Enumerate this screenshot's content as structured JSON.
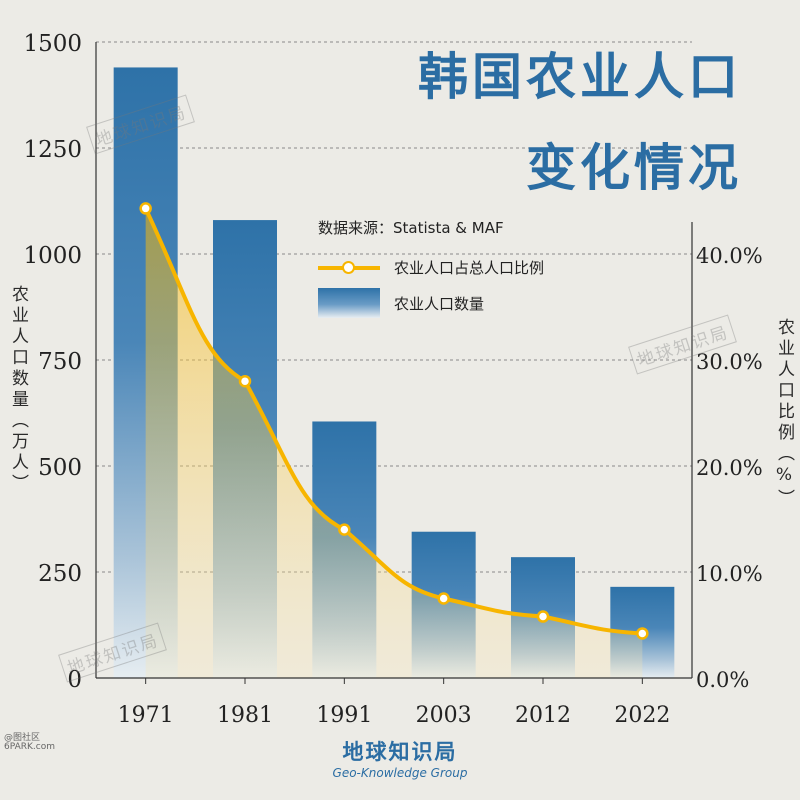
{
  "title_line1": "韩国农业人口",
  "title_line2": "变化情况",
  "source": "数据来源：Statista & MAF",
  "brand": {
    "name": "地球知识局",
    "subtitle": "Geo-Knowledge Group"
  },
  "watermark_text": "地球知识局",
  "corner_mark": [
    "@图社区",
    "6PARK.com"
  ],
  "colors": {
    "bar": "#2e72a8",
    "line": "#f7b500",
    "title": "#2b6da3",
    "background": "#ecebe6"
  },
  "chart_data": {
    "type": "bar",
    "categories": [
      "1971",
      "1981",
      "1991",
      "2003",
      "2012",
      "2022"
    ],
    "series": [
      {
        "name": "农业人口数量",
        "type": "bar",
        "axis": "left",
        "values": [
          1440,
          1080,
          605,
          345,
          285,
          215
        ]
      },
      {
        "name": "农业人口占总人口比例",
        "type": "line",
        "axis": "right",
        "values": [
          44.3,
          28.0,
          14.0,
          7.5,
          5.8,
          4.2
        ]
      }
    ],
    "ylabel": "农业人口数量（万人）",
    "y2label": "农业人口比例（%）",
    "ylim": [
      0,
      1500
    ],
    "y2lim": [
      0,
      60
    ],
    "yticks": [
      "0",
      "250",
      "500",
      "750",
      "1000",
      "1250",
      "1500"
    ],
    "y2ticks": [
      "0.0%",
      "10.0%",
      "20.0%",
      "30.0%",
      "40.0%"
    ],
    "legend": "upper-center",
    "grid": true
  }
}
